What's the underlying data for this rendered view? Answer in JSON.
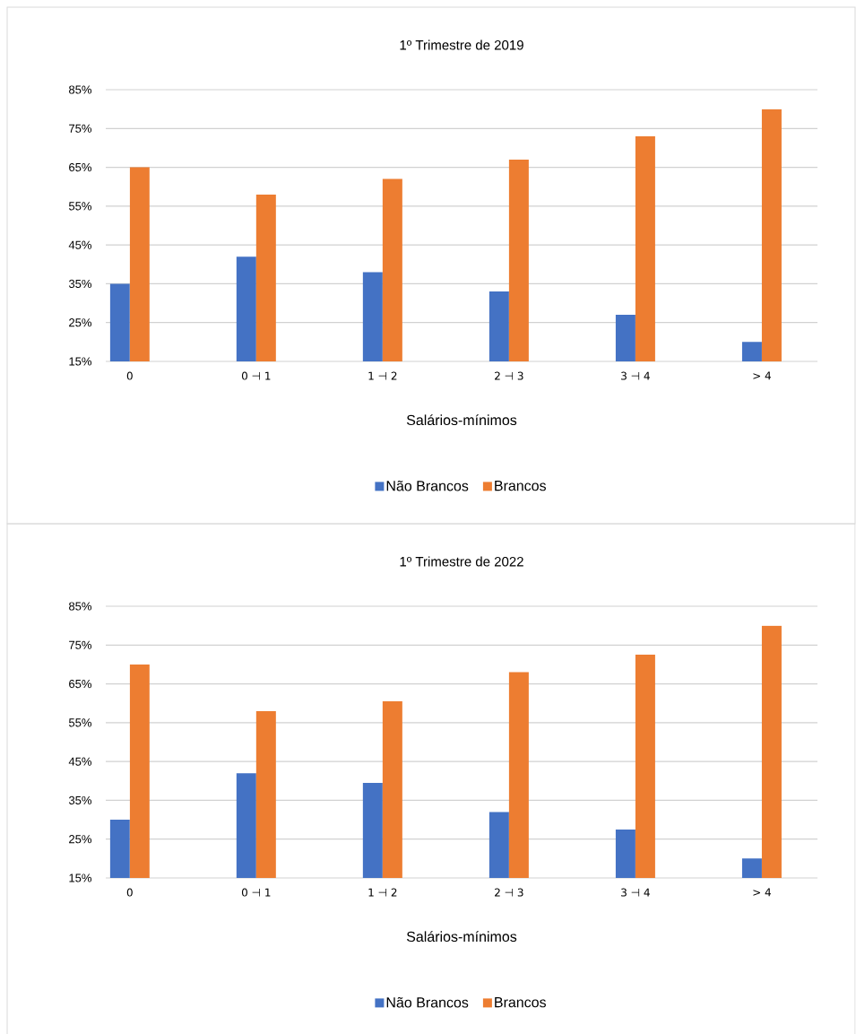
{
  "chart_data": [
    {
      "type": "bar",
      "title": "1º Trimestre  de  2019",
      "xlabel": "Salários-mínimos",
      "categories": [
        "0",
        "0 ⊣ 1",
        "1 ⊣ 2",
        "2 ⊣ 3",
        "3 ⊣ 4",
        "> 4"
      ],
      "series": [
        {
          "name": "Não Brancos",
          "color": "#4472c4",
          "values": [
            35,
            42,
            38,
            33,
            27,
            20
          ]
        },
        {
          "name": "Brancos",
          "color": "#ed7d31",
          "values": [
            65,
            58,
            62,
            67,
            73,
            80
          ]
        }
      ],
      "ylim": [
        15,
        85
      ],
      "yticks": [
        {
          "value": 15,
          "label": "15%"
        },
        {
          "value": 25,
          "label": "25%"
        },
        {
          "value": 35,
          "label": "35%"
        },
        {
          "value": 45,
          "label": "45%"
        },
        {
          "value": 55,
          "label": "55%"
        },
        {
          "value": 65,
          "label": "65%"
        },
        {
          "value": 75,
          "label": "75%"
        },
        {
          "value": 85,
          "label": "85%"
        }
      ],
      "grid": "y",
      "legend": "bottom"
    },
    {
      "type": "bar",
      "title": "1º Trimestre  de  2022",
      "xlabel": "Salários-mínimos",
      "categories": [
        "0",
        "0 ⊣ 1",
        "1 ⊣ 2",
        "2 ⊣ 3",
        "3 ⊣ 4",
        "> 4"
      ],
      "series": [
        {
          "name": "Não Brancos",
          "color": "#4472c4",
          "values": [
            30,
            42,
            39.5,
            32,
            27.5,
            20
          ]
        },
        {
          "name": "Brancos",
          "color": "#ed7d31",
          "values": [
            70,
            58,
            60.5,
            68,
            72.5,
            80
          ]
        }
      ],
      "ylim": [
        15,
        85
      ],
      "yticks": [
        {
          "value": 15,
          "label": "15%"
        },
        {
          "value": 25,
          "label": "25%"
        },
        {
          "value": 35,
          "label": "35%"
        },
        {
          "value": 45,
          "label": "45%"
        },
        {
          "value": 55,
          "label": "55%"
        },
        {
          "value": 65,
          "label": "65%"
        },
        {
          "value": 75,
          "label": "75%"
        },
        {
          "value": 85,
          "label": "85%"
        }
      ],
      "grid": "y",
      "legend": "bottom"
    }
  ]
}
